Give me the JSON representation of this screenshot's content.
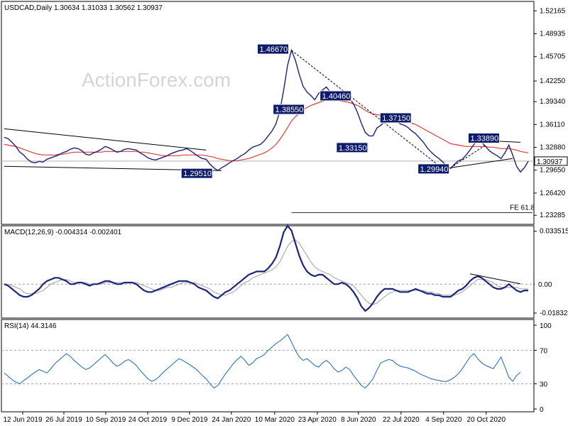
{
  "watermark": "ActionForex.com",
  "chart_data": [
    {
      "type": "line",
      "title": "USDCAD,Daily  1.30634 1.31033 1.30562 1.30937",
      "ylim": [
        1.22,
        1.535
      ],
      "y_ticks": [
        1.52165,
        1.48935,
        1.45705,
        1.4225,
        1.3934,
        1.3611,
        1.3288,
        1.2965,
        1.2642,
        1.23285
      ],
      "y_tick_labels": [
        "1.52165",
        "1.48935",
        "1.45705",
        "1.42250",
        "1.39340",
        "1.36110",
        "1.32880",
        "1.29650",
        "1.26420",
        "1.23285"
      ],
      "last_price_label": "1.30937",
      "last_price": 1.30937,
      "fe_label": "FE 61.8",
      "fe_level": 1.2365,
      "x_tick_labels": [
        "12 Jun 2019",
        "26 Jul 2019",
        "10 Sep 2019",
        "24 Oct 2019",
        "9 Dec 2019",
        "24 Jan 2020",
        "10 Mar 2020",
        "23 Apr 2020",
        "8 Jun 2020",
        "22 Jul 2020",
        "4 Sep 2020",
        "20 Oct 2020"
      ],
      "series": [
        {
          "color": "#1a237e",
          "values": [
            1.343,
            1.341,
            1.336,
            1.33,
            1.322,
            1.318,
            1.312,
            1.308,
            1.307,
            1.309,
            1.308,
            1.312,
            1.314,
            1.316,
            1.318,
            1.321,
            1.323,
            1.326,
            1.328,
            1.327,
            1.324,
            1.319,
            1.318,
            1.321,
            1.323,
            1.326,
            1.33,
            1.328,
            1.325,
            1.322,
            1.323,
            1.326,
            1.327,
            1.326,
            1.325,
            1.321,
            1.318,
            1.314,
            1.312,
            1.311,
            1.313,
            1.315,
            1.317,
            1.32,
            1.322,
            1.324,
            1.325,
            1.327,
            1.324,
            1.32,
            1.316,
            1.313,
            1.312,
            1.305,
            1.3,
            1.296,
            1.3,
            1.303,
            1.307,
            1.31,
            1.313,
            1.317,
            1.32,
            1.325,
            1.329,
            1.331,
            1.333,
            1.338,
            1.345,
            1.352,
            1.362,
            1.38,
            1.41,
            1.445,
            1.466,
            1.452,
            1.432,
            1.415,
            1.407,
            1.402,
            1.396,
            1.405,
            1.41,
            1.414,
            1.407,
            1.4,
            1.395,
            1.398,
            1.403,
            1.398,
            1.39,
            1.378,
            1.363,
            1.35,
            1.345,
            1.345,
            1.356,
            1.36,
            1.365,
            1.372,
            1.37,
            1.366,
            1.362,
            1.36,
            1.357,
            1.352,
            1.348,
            1.342,
            1.336,
            1.328,
            1.322,
            1.317,
            1.313,
            1.308,
            1.303,
            1.299,
            1.305,
            1.31,
            1.312,
            1.318,
            1.325,
            1.333,
            1.338,
            1.336,
            1.33,
            1.324,
            1.32,
            1.317,
            1.313,
            1.321,
            1.332,
            1.318,
            1.302,
            1.294,
            1.3,
            1.309
          ]
        },
        {
          "color": "#e53935",
          "values": [
            1.333,
            1.332,
            1.331,
            1.33,
            1.328,
            1.326,
            1.324,
            1.322,
            1.32,
            1.319,
            1.318,
            1.318,
            1.318,
            1.318,
            1.319,
            1.319,
            1.32,
            1.321,
            1.322,
            1.322,
            1.322,
            1.322,
            1.322,
            1.322,
            1.322,
            1.322,
            1.323,
            1.323,
            1.323,
            1.323,
            1.323,
            1.323,
            1.323,
            1.323,
            1.323,
            1.322,
            1.322,
            1.321,
            1.32,
            1.319,
            1.318,
            1.317,
            1.317,
            1.317,
            1.317,
            1.317,
            1.318,
            1.318,
            1.318,
            1.318,
            1.318,
            1.318,
            1.317,
            1.316,
            1.315,
            1.313,
            1.312,
            1.311,
            1.31,
            1.31,
            1.31,
            1.311,
            1.312,
            1.313,
            1.315,
            1.317,
            1.319,
            1.321,
            1.324,
            1.328,
            1.333,
            1.34,
            1.348,
            1.357,
            1.366,
            1.372,
            1.377,
            1.382,
            1.385,
            1.388,
            1.39,
            1.392,
            1.394,
            1.395,
            1.395,
            1.396,
            1.395,
            1.394,
            1.393,
            1.392,
            1.39,
            1.388,
            1.385,
            1.381,
            1.378,
            1.376,
            1.375,
            1.374,
            1.373,
            1.372,
            1.371,
            1.37,
            1.369,
            1.367,
            1.365,
            1.363,
            1.361,
            1.358,
            1.355,
            1.352,
            1.349,
            1.346,
            1.343,
            1.34,
            1.337,
            1.334,
            1.333,
            1.332,
            1.331,
            1.33,
            1.33,
            1.33,
            1.33,
            1.33,
            1.33,
            1.329,
            1.329,
            1.328,
            1.327,
            1.327,
            1.327,
            1.326,
            1.325,
            1.323,
            1.322,
            1.321
          ]
        }
      ],
      "annotations": [
        {
          "label": "1.46670",
          "value": 1.4667,
          "i": 74
        },
        {
          "label": "1.38550",
          "value": 1.3855,
          "i": 70
        },
        {
          "label": "1.40460",
          "value": 1.4046,
          "i": 85
        },
        {
          "label": "1.37150",
          "value": 1.3715,
          "i": 99
        },
        {
          "label": "1.33150",
          "value": 1.3315,
          "i": 94
        },
        {
          "label": "1.29510",
          "value": 1.2951,
          "i": 54
        },
        {
          "label": "1.29940",
          "value": 1.2994,
          "i": 115
        },
        {
          "label": "1.33890",
          "value": 1.3389,
          "i": 121
        }
      ],
      "trendlines": [
        {
          "from": [
            0,
            1.355
          ],
          "to": [
            52,
            1.325
          ],
          "style": "solid"
        },
        {
          "from": [
            0,
            1.302
          ],
          "to": [
            56,
            1.296
          ],
          "style": "solid"
        },
        {
          "from": [
            74,
            1.466
          ],
          "to": [
            112,
            1.303
          ],
          "style": "dashed"
        },
        {
          "from": [
            115,
            1.3
          ],
          "to": [
            131,
            1.313
          ],
          "style": "solid"
        },
        {
          "from": [
            115,
            1.3
          ],
          "to": [
            124,
            1.332
          ],
          "style": "dashed"
        },
        {
          "from": [
            121,
            1.339
          ],
          "to": [
            133,
            1.336
          ],
          "style": "solid"
        }
      ]
    },
    {
      "type": "line",
      "title": "MACD(12,26,9) -0.004314 -0.002401",
      "ylim": [
        -0.0215,
        0.037
      ],
      "y_tick_labels": [
        "0.033515",
        "0.00",
        "-0.018324"
      ],
      "y_ticks": [
        0.033515,
        0.0,
        -0.018324
      ],
      "last_labels": [
        "0.00",
        "0.00"
      ],
      "series": [
        {
          "color": "#1a237e",
          "values": [
            0.0,
            -0.001,
            -0.003,
            -0.005,
            -0.007,
            -0.008,
            -0.008,
            -0.007,
            -0.005,
            -0.003,
            0.0,
            0.002,
            0.003,
            0.004,
            0.004,
            0.003,
            0.002,
            0.0,
            0.0,
            0.001,
            0.001,
            0.0,
            -0.001,
            0.0,
            0.0,
            0.001,
            0.002,
            0.002,
            0.001,
            0.0,
            0.0,
            0.001,
            0.001,
            0.001,
            0.0,
            -0.002,
            -0.004,
            -0.005,
            -0.005,
            -0.004,
            -0.003,
            -0.002,
            -0.001,
            0.0,
            0.001,
            0.002,
            0.002,
            0.002,
            0.001,
            0.0,
            -0.002,
            -0.003,
            -0.004,
            -0.006,
            -0.008,
            -0.009,
            -0.007,
            -0.005,
            -0.004,
            -0.002,
            0.0,
            0.002,
            0.004,
            0.006,
            0.007,
            0.008,
            0.008,
            0.008,
            0.01,
            0.013,
            0.017,
            0.024,
            0.033,
            0.037,
            0.034,
            0.026,
            0.018,
            0.012,
            0.008,
            0.006,
            0.005,
            0.006,
            0.006,
            0.004,
            0.002,
            0.0,
            0.0,
            0.001,
            0.0,
            -0.002,
            -0.005,
            -0.009,
            -0.014,
            -0.017,
            -0.015,
            -0.012,
            -0.008,
            -0.005,
            -0.003,
            -0.003,
            -0.003,
            -0.004,
            -0.005,
            -0.005,
            -0.005,
            -0.004,
            -0.003,
            -0.004,
            -0.005,
            -0.006,
            -0.006,
            -0.007,
            -0.007,
            -0.008,
            -0.008,
            -0.008,
            -0.006,
            -0.004,
            -0.003,
            -0.001,
            0.002,
            0.004,
            0.005,
            0.004,
            0.002,
            0.0,
            -0.002,
            -0.003,
            -0.003,
            -0.002,
            0.0,
            -0.002,
            -0.004,
            -0.005,
            -0.004,
            -0.004
          ]
        },
        {
          "color": "#9e9e9e",
          "values": [
            0.0,
            0.0,
            -0.001,
            -0.002,
            -0.003,
            -0.005,
            -0.006,
            -0.006,
            -0.006,
            -0.005,
            -0.004,
            -0.002,
            0.0,
            0.001,
            0.002,
            0.003,
            0.003,
            0.002,
            0.001,
            0.001,
            0.001,
            0.001,
            0.0,
            0.0,
            0.0,
            0.0,
            0.001,
            0.001,
            0.001,
            0.001,
            0.001,
            0.001,
            0.001,
            0.001,
            0.001,
            0.0,
            -0.001,
            -0.002,
            -0.003,
            -0.004,
            -0.004,
            -0.003,
            -0.002,
            -0.002,
            -0.001,
            0.0,
            0.001,
            0.001,
            0.001,
            0.001,
            0.0,
            -0.001,
            -0.002,
            -0.003,
            -0.005,
            -0.006,
            -0.007,
            -0.007,
            -0.006,
            -0.005,
            -0.003,
            -0.001,
            0.001,
            0.002,
            0.004,
            0.005,
            0.006,
            0.007,
            0.008,
            0.009,
            0.011,
            0.014,
            0.019,
            0.024,
            0.027,
            0.028,
            0.026,
            0.022,
            0.018,
            0.014,
            0.011,
            0.009,
            0.008,
            0.007,
            0.006,
            0.004,
            0.003,
            0.002,
            0.001,
            0.0,
            -0.001,
            -0.004,
            -0.007,
            -0.01,
            -0.012,
            -0.013,
            -0.012,
            -0.01,
            -0.008,
            -0.006,
            -0.005,
            -0.004,
            -0.004,
            -0.004,
            -0.004,
            -0.004,
            -0.004,
            -0.004,
            -0.004,
            -0.005,
            -0.005,
            -0.006,
            -0.006,
            -0.007,
            -0.007,
            -0.007,
            -0.007,
            -0.006,
            -0.005,
            -0.003,
            -0.001,
            0.001,
            0.003,
            0.003,
            0.003,
            0.002,
            0.001,
            -0.001,
            -0.002,
            -0.002,
            -0.002,
            -0.002,
            -0.002,
            -0.003,
            -0.003,
            -0.003
          ]
        }
      ],
      "trendlines": [
        {
          "from": [
            120,
            0.0065
          ],
          "to": [
            133,
            0.0002
          ],
          "style": "solid"
        }
      ]
    },
    {
      "type": "line",
      "title": "RSI(14) 44.3146",
      "ylim": [
        0,
        100
      ],
      "y_tick_labels": [
        "100",
        "70",
        "30",
        "0"
      ],
      "y_ticks": [
        100,
        70,
        30,
        0
      ],
      "series": [
        {
          "color": "#1565c0",
          "values": [
            43,
            39,
            35,
            32,
            30,
            34,
            37,
            41,
            44,
            47,
            45,
            43,
            48,
            54,
            58,
            62,
            66,
            63,
            58,
            54,
            50,
            47,
            49,
            53,
            57,
            61,
            65,
            60,
            55,
            51,
            53,
            57,
            59,
            56,
            52,
            46,
            41,
            36,
            33,
            35,
            39,
            44,
            48,
            52,
            56,
            60,
            58,
            55,
            52,
            49,
            45,
            40,
            36,
            30,
            25,
            28,
            35,
            42,
            48,
            54,
            59,
            63,
            58,
            52,
            55,
            60,
            62,
            65,
            70,
            74,
            78,
            81,
            85,
            89,
            80,
            70,
            62,
            58,
            60,
            56,
            52,
            50,
            55,
            58,
            54,
            48,
            44,
            46,
            50,
            47,
            40,
            34,
            28,
            25,
            30,
            36,
            46,
            55,
            57,
            59,
            58,
            54,
            51,
            50,
            49,
            47,
            45,
            42,
            40,
            38,
            36,
            35,
            34,
            33,
            33,
            35,
            38,
            42,
            48,
            55,
            62,
            66,
            60,
            55,
            52,
            50,
            48,
            55,
            62,
            50,
            38,
            33,
            40,
            44
          ]
        }
      ],
      "levels": [
        70,
        30
      ]
    }
  ]
}
